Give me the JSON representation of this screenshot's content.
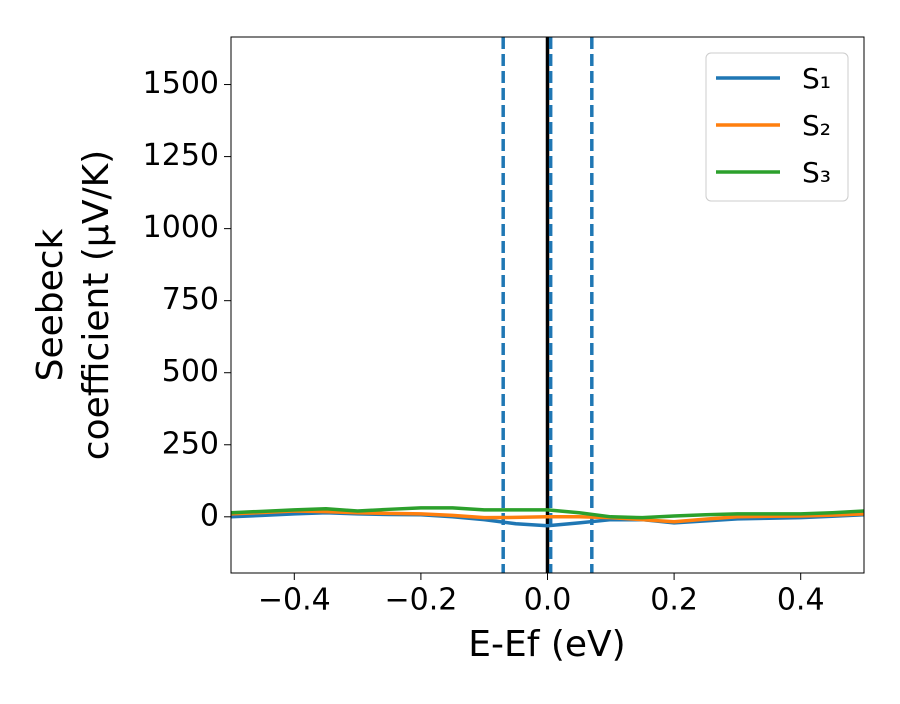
{
  "chart_data": {
    "type": "line",
    "xlabel": "E-Ef (eV)",
    "ylabel": [
      "Seebeck",
      "coefficient  (μV/K)"
    ],
    "x": [
      -0.5,
      -0.45,
      -0.4,
      -0.35,
      -0.3,
      -0.25,
      -0.2,
      -0.15,
      -0.1,
      -0.05,
      0.0,
      0.05,
      0.1,
      0.15,
      0.2,
      0.25,
      0.3,
      0.35,
      0.4,
      0.45,
      0.5
    ],
    "series": [
      {
        "name": "S₁",
        "color": "#1f77b4",
        "values": [
          0,
          5,
          10,
          14,
          10,
          8,
          7,
          0,
          -10,
          -24,
          -31,
          -21,
          -10,
          -10,
          -21,
          -14,
          -7,
          -5,
          -3,
          2,
          7
        ]
      },
      {
        "name": "S₂",
        "color": "#ff7f0e",
        "values": [
          10,
          15,
          20,
          18,
          14,
          12,
          10,
          5,
          -3,
          -2,
          0,
          0,
          -3,
          -10,
          -17,
          -8,
          0,
          2,
          3,
          6,
          10
        ]
      },
      {
        "name": "S₃",
        "color": "#2ca02c",
        "values": [
          14,
          19,
          24,
          28,
          20,
          26,
          31,
          31,
          24,
          24,
          24,
          14,
          0,
          -3,
          3,
          7,
          10,
          10,
          10,
          14,
          20
        ]
      }
    ],
    "xlim": [
      -0.5,
      0.5
    ],
    "ylim": [
      -195,
      1665
    ],
    "xticks": [
      {
        "value": -0.4,
        "label": "−0.4"
      },
      {
        "value": -0.2,
        "label": "−0.2"
      },
      {
        "value": 0.0,
        "label": "0.0"
      },
      0.2,
      0.4
    ],
    "yticks": [
      0,
      250,
      500,
      750,
      1000,
      1250,
      1500
    ],
    "vlines": [
      {
        "x": -0.07,
        "color": "#1f77b4",
        "style": "dashed"
      },
      {
        "x": 0.0,
        "color": "#000000",
        "style": "solid"
      },
      {
        "x": 0.005,
        "color": "#1f77b4",
        "style": "dashed"
      },
      {
        "x": 0.07,
        "color": "#1f77b4",
        "style": "dashed"
      }
    ],
    "legend": "upper right",
    "grid": false
  }
}
